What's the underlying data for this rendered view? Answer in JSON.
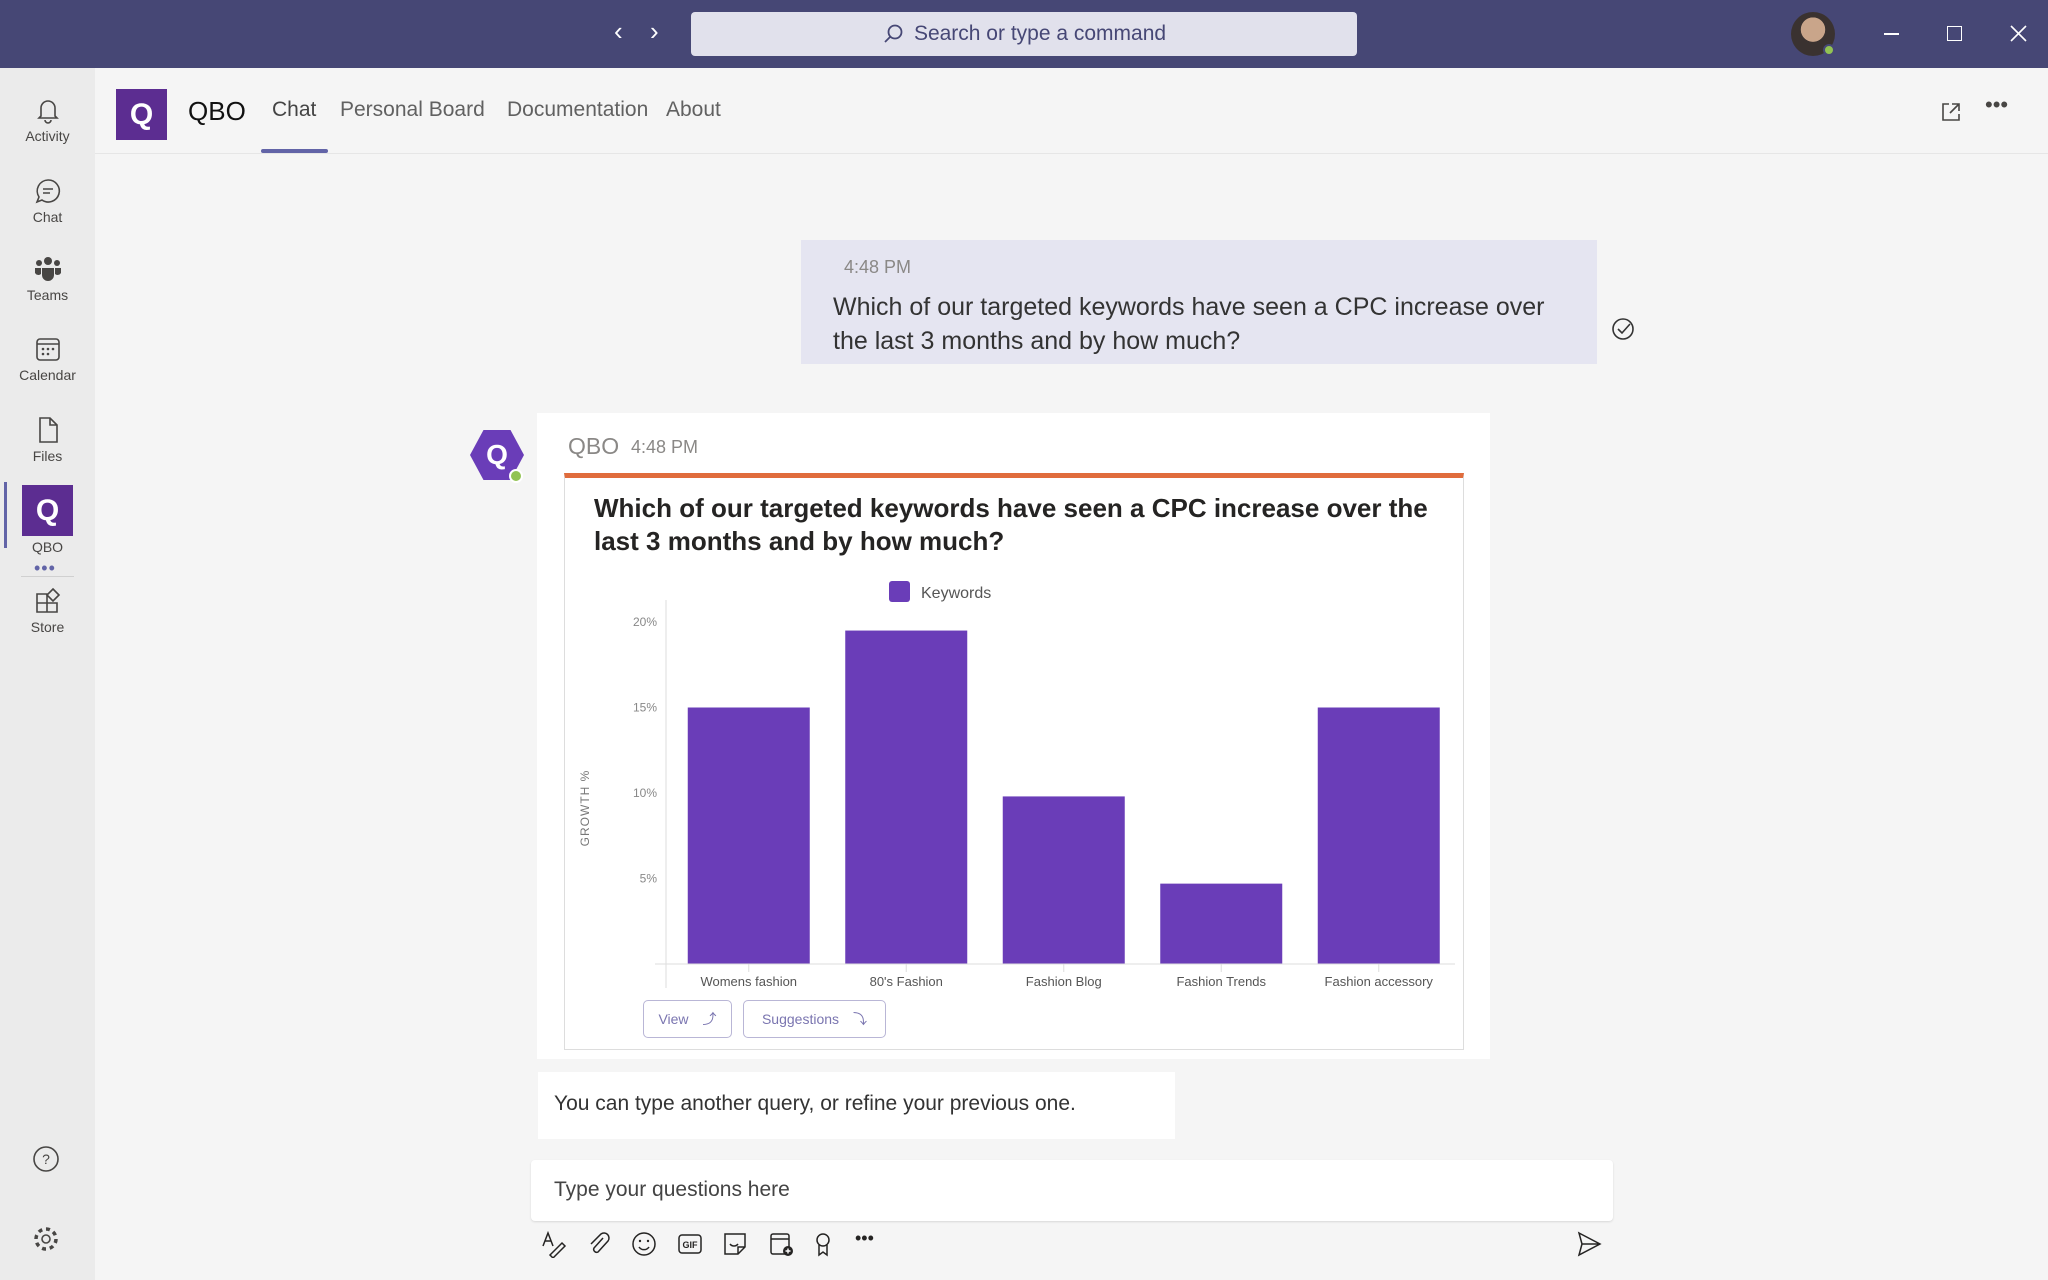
{
  "titlebar": {
    "search_placeholder": "Search or type a command"
  },
  "rail": {
    "items": [
      {
        "label": "Activity",
        "icon": "bell-icon"
      },
      {
        "label": "Chat",
        "icon": "chat-icon"
      },
      {
        "label": "Teams",
        "icon": "teams-icon"
      },
      {
        "label": "Calendar",
        "icon": "calendar-icon"
      },
      {
        "label": "Files",
        "icon": "file-icon"
      },
      {
        "label": "QBO",
        "icon": "qbo-icon",
        "active": true
      },
      {
        "label": "Store",
        "icon": "store-icon"
      }
    ]
  },
  "header": {
    "app_name": "QBO",
    "tabs": [
      {
        "label": "Chat",
        "active": true
      },
      {
        "label": "Personal Board"
      },
      {
        "label": "Documentation"
      },
      {
        "label": "About"
      }
    ]
  },
  "messages": {
    "user": {
      "time": "4:48 PM",
      "text": "Which of our targeted keywords have seen a CPC increase over the last 3 months and by how much?"
    },
    "bot": {
      "sender": "QBO",
      "time": "4:48 PM",
      "view_label": "View",
      "suggestions_label": "Suggestions"
    },
    "followup": "You can type another query, or refine your previous one."
  },
  "compose": {
    "placeholder": "Type your questions here"
  },
  "colors": {
    "titlebar": "#464775",
    "accent": "#6264a7",
    "bar": "#6a3db8",
    "card_accent": "#e06c3c"
  },
  "chart_data": {
    "type": "bar",
    "title": "Which of our targeted keywords have seen a CPC increase over the last 3 months and by how much?",
    "legend": "Keywords",
    "legend_position": "top",
    "ylabel": "GROWTH %",
    "xlabel": "",
    "categories": [
      "Womens fashion",
      "80's Fashion",
      "Fashion Blog",
      "Fashion Trends",
      "Fashion accessory"
    ],
    "values": [
      15,
      19.5,
      9.8,
      4.7,
      15
    ],
    "yticks": [
      "5%",
      "10%",
      "15%",
      "20%"
    ],
    "ylim": [
      0,
      21
    ],
    "grid": false
  }
}
